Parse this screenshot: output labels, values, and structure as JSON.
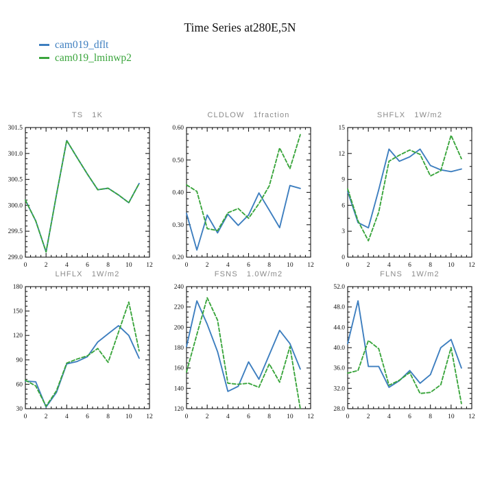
{
  "page_title": "Time Series at280E,5N",
  "legend": [
    {
      "label": "cam019_dflt",
      "color": "#3d7ebf"
    },
    {
      "label": "cam019_lminwp2",
      "color": "#3aa53c"
    }
  ],
  "colors": {
    "axis": "#1a1a1a",
    "subplot_title": "#8a8a8a",
    "blue": "#3d7ebf",
    "green": "#3aa53c"
  },
  "chart_data": [
    {
      "type": "line",
      "name": "TS",
      "units": "1K",
      "xlim": [
        0,
        12
      ],
      "xticks": [
        0,
        2,
        4,
        6,
        8,
        10,
        12
      ],
      "xtick_labels": [
        "0",
        "2",
        "4",
        "6",
        "8",
        "10",
        "12"
      ],
      "x_minor_step": 0.5,
      "ylim": [
        299.0,
        301.5
      ],
      "yticks": [
        299.0,
        299.5,
        300.0,
        300.5,
        301.0,
        301.5
      ],
      "ytick_labels": [
        "299.0",
        "299.5",
        "300.0",
        "300.5",
        "301.0",
        "301.5"
      ],
      "y_minor_step": 0.1,
      "x": [
        0,
        1,
        2,
        3,
        4,
        5,
        6,
        7,
        8,
        9,
        10,
        11
      ],
      "series": [
        {
          "name": "cam019_dflt",
          "color": "#3d7ebf",
          "dash": "solid",
          "values": [
            300.1,
            299.7,
            299.1,
            300.2,
            301.25,
            300.92,
            300.6,
            300.3,
            300.33,
            300.2,
            300.05,
            300.42
          ]
        },
        {
          "name": "cam019_lminwp2",
          "color": "#3aa53c",
          "dash": "dashed",
          "values": [
            300.1,
            299.7,
            299.1,
            300.2,
            301.25,
            300.92,
            300.6,
            300.3,
            300.33,
            300.2,
            300.05,
            300.42
          ]
        }
      ]
    },
    {
      "type": "line",
      "name": "CLDLOW",
      "units": "1fraction",
      "xlim": [
        0,
        12
      ],
      "xticks": [
        0,
        2,
        4,
        6,
        8,
        10,
        12
      ],
      "xtick_labels": [
        "0",
        "2",
        "4",
        "6",
        "8",
        "10",
        "12"
      ],
      "x_minor_step": 0.5,
      "ylim": [
        0.2,
        0.6
      ],
      "yticks": [
        0.2,
        0.3,
        0.4,
        0.5,
        0.6
      ],
      "ytick_labels": [
        "0.20",
        "0.30",
        "0.40",
        "0.50",
        "0.60"
      ],
      "y_minor_step": 0.02,
      "x": [
        0,
        1,
        2,
        3,
        4,
        5,
        6,
        7,
        8,
        9,
        10,
        11
      ],
      "series": [
        {
          "name": "cam019_dflt",
          "color": "#3d7ebf",
          "dash": "solid",
          "values": [
            0.335,
            0.222,
            0.33,
            0.275,
            0.333,
            0.298,
            0.33,
            0.398,
            0.345,
            0.291,
            0.421,
            0.412
          ]
        },
        {
          "name": "cam019_lminwp2",
          "color": "#3aa53c",
          "dash": "dashed",
          "values": [
            0.423,
            0.403,
            0.288,
            0.282,
            0.337,
            0.35,
            0.32,
            0.365,
            0.42,
            0.537,
            0.473,
            0.578
          ]
        }
      ]
    },
    {
      "type": "line",
      "name": "SHFLX",
      "units": "1W/m2",
      "xlim": [
        0,
        12
      ],
      "xticks": [
        0,
        2,
        4,
        6,
        8,
        10,
        12
      ],
      "xtick_labels": [
        "0",
        "2",
        "4",
        "6",
        "8",
        "10",
        "12"
      ],
      "x_minor_step": 0.5,
      "ylim": [
        0,
        15
      ],
      "yticks": [
        0,
        3,
        6,
        9,
        12,
        15
      ],
      "ytick_labels": [
        "0",
        "3",
        "6",
        "9",
        "12",
        "15"
      ],
      "y_minor_step": 1.5,
      "x": [
        0,
        1,
        2,
        3,
        4,
        5,
        6,
        7,
        8,
        9,
        10,
        11
      ],
      "series": [
        {
          "name": "cam019_dflt",
          "color": "#3d7ebf",
          "dash": "solid",
          "values": [
            7.6,
            4.0,
            3.4,
            7.8,
            12.5,
            11.1,
            11.6,
            12.5,
            10.6,
            10.1,
            9.9,
            10.2
          ]
        },
        {
          "name": "cam019_lminwp2",
          "color": "#3aa53c",
          "dash": "dashed",
          "values": [
            7.9,
            4.2,
            1.9,
            5.2,
            11.1,
            11.8,
            12.4,
            11.9,
            9.4,
            10.0,
            14.1,
            11.4
          ]
        }
      ]
    },
    {
      "type": "line",
      "name": "LHFLX",
      "units": "1W/m2",
      "xlim": [
        0,
        12
      ],
      "xticks": [
        0,
        2,
        4,
        6,
        8,
        10,
        12
      ],
      "xtick_labels": [
        "0",
        "2",
        "4",
        "6",
        "8",
        "10",
        "12"
      ],
      "x_minor_step": 0.5,
      "ylim": [
        30,
        180
      ],
      "yticks": [
        30,
        60,
        90,
        120,
        150,
        180
      ],
      "ytick_labels": [
        "30",
        "60",
        "90",
        "120",
        "150",
        "180"
      ],
      "y_minor_step": 6,
      "x": [
        0,
        1,
        2,
        3,
        4,
        5,
        6,
        7,
        8,
        9,
        10,
        11
      ],
      "series": [
        {
          "name": "cam019_dflt",
          "color": "#3d7ebf",
          "dash": "solid",
          "values": [
            64,
            63,
            32,
            50,
            85,
            88,
            94,
            112,
            122,
            132,
            120,
            92
          ]
        },
        {
          "name": "cam019_lminwp2",
          "color": "#3aa53c",
          "dash": "dashed",
          "values": [
            65,
            58,
            33,
            52,
            86,
            91,
            95,
            104,
            87,
            124,
            161,
            101
          ]
        }
      ]
    },
    {
      "type": "line",
      "name": "FSNS",
      "units": "1.0W/m2",
      "xlim": [
        0,
        12
      ],
      "xticks": [
        0,
        2,
        4,
        6,
        8,
        10,
        12
      ],
      "xtick_labels": [
        "0",
        "2",
        "4",
        "6",
        "8",
        "10",
        "12"
      ],
      "x_minor_step": 0.5,
      "ylim": [
        120,
        240
      ],
      "yticks": [
        120,
        140,
        160,
        180,
        200,
        220,
        240
      ],
      "ytick_labels": [
        "120",
        "140",
        "160",
        "180",
        "200",
        "220",
        "240"
      ],
      "y_minor_step": 5,
      "x": [
        0,
        1,
        2,
        3,
        4,
        5,
        6,
        7,
        8,
        9,
        10,
        11
      ],
      "series": [
        {
          "name": "cam019_dflt",
          "color": "#3d7ebf",
          "dash": "solid",
          "values": [
            181,
            226,
            203,
            176,
            137,
            142,
            166,
            149,
            173,
            197,
            184,
            159
          ]
        },
        {
          "name": "cam019_lminwp2",
          "color": "#3aa53c",
          "dash": "dashed",
          "values": [
            156,
            193,
            229,
            207,
            145,
            144,
            145,
            141,
            164,
            146,
            181,
            120
          ]
        }
      ]
    },
    {
      "type": "line",
      "name": "FLNS",
      "units": "1W/m2",
      "xlim": [
        0,
        12
      ],
      "xticks": [
        0,
        2,
        4,
        6,
        8,
        10,
        12
      ],
      "xtick_labels": [
        "0",
        "2",
        "4",
        "6",
        "8",
        "10",
        "12"
      ],
      "x_minor_step": 0.5,
      "ylim": [
        28.0,
        52.0
      ],
      "yticks": [
        28,
        32,
        36,
        40,
        44,
        48,
        52
      ],
      "ytick_labels": [
        "28.0",
        "32.0",
        "36.0",
        "40.0",
        "44.0",
        "48.0",
        "52.0"
      ],
      "y_minor_step": 1,
      "x": [
        0,
        1,
        2,
        3,
        4,
        5,
        6,
        7,
        8,
        9,
        10,
        11
      ],
      "series": [
        {
          "name": "cam019_dflt",
          "color": "#3d7ebf",
          "dash": "solid",
          "values": [
            40.8,
            49.2,
            36.3,
            36.3,
            32.2,
            33.5,
            35.5,
            33.0,
            34.7,
            40.0,
            41.6,
            36.0
          ]
        },
        {
          "name": "cam019_lminwp2",
          "color": "#3aa53c",
          "dash": "dashed",
          "values": [
            35.0,
            35.5,
            41.4,
            39.8,
            32.6,
            33.6,
            35.1,
            31.0,
            31.2,
            32.7,
            40.0,
            29.0
          ]
        }
      ]
    }
  ]
}
